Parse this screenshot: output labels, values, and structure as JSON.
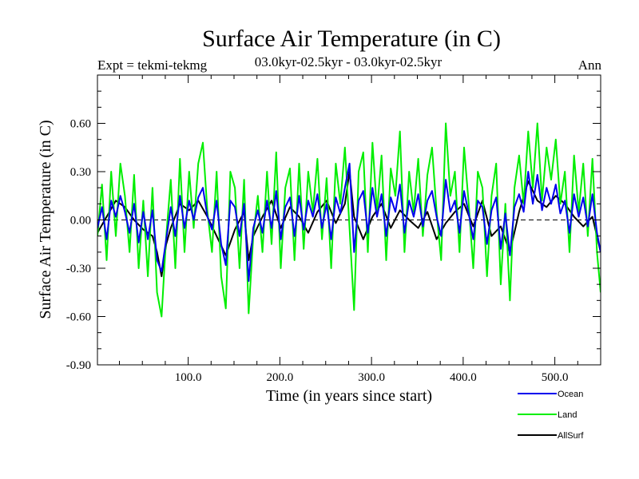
{
  "chart_data": {
    "type": "line",
    "title": "Surface Air Temperature (in C)",
    "subtitle": "03.0kyr-02.5kyr - 03.0kyr-02.5kyr",
    "left_label": "Expt = tekmi-tekmg",
    "right_label": "Ann",
    "xlabel": "Time (in years since start)",
    "ylabel": "Surface Air Temperature (in C)",
    "xlim": [
      1,
      550
    ],
    "ylim": [
      -0.9,
      0.9
    ],
    "x_ticks": [
      {
        "value": 100,
        "label": "100.0"
      },
      {
        "value": 200,
        "label": "200.0"
      },
      {
        "value": 300,
        "label": "300.0"
      },
      {
        "value": 400,
        "label": "400.0"
      },
      {
        "value": 500,
        "label": "500.0"
      }
    ],
    "y_ticks": [
      {
        "value": 0.6,
        "label": "0.60"
      },
      {
        "value": 0.3,
        "label": "0.30"
      },
      {
        "value": 0.0,
        "label": "0.00"
      },
      {
        "value": -0.3,
        "label": "-0.30"
      },
      {
        "value": -0.6,
        "label": "-0.60"
      },
      {
        "value": -0.9,
        "label": "-0.90"
      }
    ],
    "zero_line": true,
    "legend_position": "bottom-right",
    "series": [
      {
        "name": "AllSurf",
        "color": "#000000",
        "x": [
          1,
          11,
          21,
          31,
          41,
          51,
          61,
          66,
          71,
          76,
          81,
          91,
          101,
          111,
          121,
          131,
          141,
          151,
          161,
          166,
          171,
          181,
          191,
          201,
          211,
          221,
          231,
          241,
          251,
          261,
          271,
          276,
          281,
          291,
          301,
          311,
          321,
          331,
          341,
          351,
          361,
          371,
          381,
          391,
          401,
          411,
          421,
          431,
          441,
          451,
          461,
          471,
          476,
          481,
          491,
          501,
          511,
          521,
          531,
          541,
          550
        ],
        "values": [
          -0.08,
          0.02,
          0.12,
          0.08,
          0.0,
          -0.06,
          -0.1,
          -0.2,
          -0.35,
          -0.15,
          -0.05,
          0.1,
          0.06,
          0.12,
          0.02,
          -0.1,
          -0.22,
          -0.06,
          0.05,
          -0.25,
          -0.1,
          0.02,
          0.12,
          -0.05,
          0.08,
          0.02,
          -0.08,
          0.05,
          0.12,
          -0.02,
          0.1,
          0.3,
          0.02,
          -0.12,
          0.02,
          0.1,
          -0.05,
          0.06,
          0.0,
          -0.05,
          0.05,
          -0.12,
          -0.02,
          0.05,
          0.1,
          -0.04,
          0.12,
          -0.1,
          -0.04,
          -0.2,
          0.05,
          0.24,
          0.18,
          0.12,
          0.08,
          0.15,
          0.1,
          0.02,
          -0.04,
          0.02,
          -0.2
        ]
      },
      {
        "name": "Land",
        "color": "#00ee00",
        "x": [
          1,
          6,
          11,
          16,
          21,
          26,
          31,
          36,
          41,
          46,
          51,
          56,
          61,
          66,
          71,
          76,
          81,
          86,
          91,
          96,
          101,
          106,
          111,
          116,
          121,
          126,
          131,
          136,
          141,
          146,
          151,
          156,
          161,
          166,
          171,
          176,
          181,
          186,
          191,
          196,
          201,
          206,
          211,
          216,
          221,
          226,
          231,
          236,
          241,
          246,
          251,
          256,
          261,
          266,
          271,
          276,
          281,
          286,
          291,
          296,
          301,
          306,
          311,
          316,
          321,
          326,
          331,
          336,
          341,
          346,
          351,
          356,
          361,
          366,
          371,
          376,
          381,
          386,
          391,
          396,
          401,
          406,
          411,
          416,
          421,
          426,
          431,
          436,
          441,
          446,
          451,
          456,
          461,
          466,
          471,
          476,
          481,
          486,
          491,
          496,
          501,
          506,
          511,
          516,
          521,
          526,
          531,
          536,
          541,
          546,
          550
        ],
        "values": [
          -0.1,
          0.22,
          -0.25,
          0.3,
          -0.1,
          0.35,
          0.15,
          -0.2,
          0.28,
          -0.3,
          0.12,
          -0.35,
          0.2,
          -0.45,
          -0.6,
          -0.1,
          0.25,
          -0.3,
          0.38,
          -0.2,
          0.3,
          -0.05,
          0.35,
          0.48,
          0.05,
          -0.2,
          0.3,
          -0.35,
          -0.55,
          0.3,
          0.2,
          -0.3,
          0.25,
          -0.58,
          -0.1,
          0.15,
          -0.2,
          0.3,
          -0.15,
          0.42,
          -0.3,
          0.2,
          0.32,
          -0.25,
          0.35,
          -0.18,
          0.3,
          0.05,
          0.38,
          -0.12,
          0.26,
          -0.3,
          0.35,
          0.1,
          0.45,
          -0.05,
          -0.56,
          0.3,
          0.42,
          -0.2,
          0.48,
          0.05,
          0.4,
          -0.25,
          0.32,
          0.15,
          0.55,
          -0.2,
          0.3,
          0.05,
          0.38,
          -0.1,
          0.28,
          0.45,
          0.05,
          -0.25,
          0.6,
          0.15,
          0.3,
          -0.2,
          0.45,
          0.1,
          -0.3,
          0.3,
          0.2,
          -0.35,
          0.15,
          0.35,
          -0.4,
          0.1,
          -0.5,
          0.2,
          0.4,
          0.1,
          0.55,
          0.2,
          0.6,
          0.12,
          0.45,
          0.25,
          0.5,
          0.1,
          0.3,
          -0.2,
          0.4,
          0.05,
          0.35,
          -0.1,
          0.38,
          -0.2,
          -0.45
        ]
      },
      {
        "name": "Ocean",
        "color": "#0000ee",
        "x": [
          1,
          6,
          11,
          16,
          21,
          26,
          31,
          36,
          41,
          46,
          51,
          56,
          61,
          66,
          71,
          76,
          81,
          86,
          91,
          96,
          101,
          106,
          111,
          116,
          121,
          126,
          131,
          136,
          141,
          146,
          151,
          156,
          161,
          166,
          171,
          176,
          181,
          186,
          191,
          196,
          201,
          206,
          211,
          216,
          221,
          226,
          231,
          236,
          241,
          246,
          251,
          256,
          261,
          266,
          271,
          276,
          281,
          286,
          291,
          296,
          301,
          306,
          311,
          316,
          321,
          326,
          331,
          336,
          341,
          346,
          351,
          356,
          361,
          366,
          371,
          376,
          381,
          386,
          391,
          396,
          401,
          406,
          411,
          416,
          421,
          426,
          431,
          436,
          441,
          446,
          451,
          456,
          461,
          466,
          471,
          476,
          481,
          486,
          491,
          496,
          501,
          506,
          511,
          516,
          521,
          526,
          531,
          536,
          541,
          546,
          550
        ],
        "values": [
          -0.05,
          0.08,
          -0.12,
          0.12,
          0.02,
          0.15,
          0.05,
          -0.08,
          0.1,
          -0.14,
          0.05,
          -0.12,
          0.06,
          -0.25,
          -0.32,
          -0.12,
          0.08,
          -0.1,
          0.15,
          -0.05,
          0.12,
          0.0,
          0.14,
          0.2,
          0.02,
          -0.06,
          0.12,
          -0.15,
          -0.28,
          0.12,
          0.08,
          -0.1,
          0.1,
          -0.38,
          -0.05,
          0.06,
          -0.08,
          0.12,
          -0.05,
          0.18,
          -0.12,
          0.08,
          0.14,
          -0.1,
          0.15,
          -0.06,
          0.12,
          0.02,
          0.16,
          -0.05,
          0.1,
          -0.12,
          0.14,
          0.04,
          0.2,
          0.35,
          -0.2,
          0.12,
          0.18,
          -0.08,
          0.2,
          0.02,
          0.16,
          -0.1,
          0.14,
          0.05,
          0.22,
          -0.08,
          0.12,
          0.02,
          0.16,
          -0.04,
          0.12,
          0.18,
          0.02,
          -0.1,
          0.25,
          0.05,
          0.12,
          -0.08,
          0.18,
          0.04,
          -0.12,
          0.12,
          0.08,
          -0.15,
          0.06,
          0.14,
          -0.18,
          0.04,
          -0.22,
          0.08,
          0.16,
          0.05,
          0.3,
          0.1,
          0.28,
          0.06,
          0.2,
          0.1,
          0.22,
          0.04,
          0.12,
          -0.08,
          0.16,
          0.02,
          0.14,
          -0.04,
          0.16,
          -0.08,
          -0.2
        ]
      }
    ]
  }
}
